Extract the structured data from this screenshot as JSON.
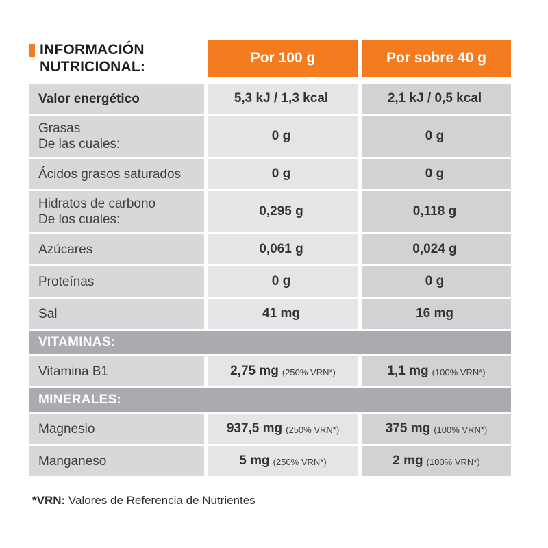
{
  "title": {
    "line1": "INFORMACIÓN",
    "line2": "NUTRICIONAL:"
  },
  "columns": {
    "per100": "Por 100 g",
    "per40": "Por sobre 40 g"
  },
  "colors": {
    "accent_orange": "#f47b20",
    "section_band": "#a9abae",
    "label_cell": "#d7d8da",
    "per100_cell": "#e4e5e7",
    "per40_cell": "#d0d2d4"
  },
  "sections": {
    "vitamins": "VITAMINAS:",
    "minerals": "MINERALES:"
  },
  "table": {
    "rows": [
      {
        "label": "Valor energético",
        "per100": {
          "value": "5,3 kJ / 1,3 kcal"
        },
        "per40": {
          "value": "2,1 kJ / 0,5 kcal"
        }
      },
      {
        "label": "Grasas",
        "sublabel": "De las cuales:",
        "per100": {
          "value": "0 g"
        },
        "per40": {
          "value": "0 g"
        }
      },
      {
        "label": "Ácidos grasos saturados",
        "per100": {
          "value": "0 g"
        },
        "per40": {
          "value": "0 g"
        }
      },
      {
        "label": "Hidratos de carbono",
        "sublabel": "De los cuales:",
        "per100": {
          "value": "0,295 g"
        },
        "per40": {
          "value": "0,118 g"
        }
      },
      {
        "label": "Azúcares",
        "per100": {
          "value": "0,061 g"
        },
        "per40": {
          "value": "0,024 g"
        }
      },
      {
        "label": "Proteínas",
        "per100": {
          "value": "0 g"
        },
        "per40": {
          "value": "0 g"
        }
      },
      {
        "label": "Sal",
        "per100": {
          "value": "41 mg"
        },
        "per40": {
          "value": "16 mg"
        }
      },
      {
        "label": "Vitamina B1",
        "per100": {
          "value": "2,75 mg",
          "note": "(250% VRN*)"
        },
        "per40": {
          "value": "1,1 mg",
          "note": "(100% VRN*)"
        }
      },
      {
        "label": "Magnesio",
        "per100": {
          "value": "937,5 mg",
          "note": "(250% VRN*)"
        },
        "per40": {
          "value": "375 mg",
          "note": "(100% VRN*)"
        }
      },
      {
        "label": "Manganeso",
        "per100": {
          "value": "5 mg",
          "note": "(250% VRN*)"
        },
        "per40": {
          "value": "2 mg",
          "note": "(100% VRN*)"
        }
      }
    ]
  },
  "footnote": {
    "label": "*VRN:",
    "text": "Valores de Referencia de Nutrientes"
  }
}
